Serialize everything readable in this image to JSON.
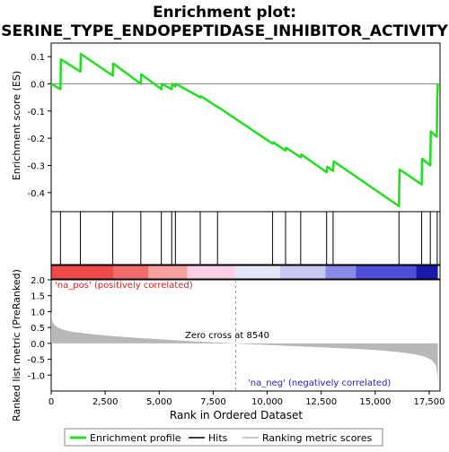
{
  "colors": {
    "es_line": "#22dd22",
    "hit_line": "#000000",
    "metric_fill": "#b8b8b8",
    "zero_line": "#888888",
    "pos_label": "#cc2222",
    "neg_label": "#2222cc",
    "heat_pos": "#ee2222",
    "heat_neg": "#2222cc"
  },
  "chart_data": [
    {
      "type": "line",
      "title": [
        "Enrichment plot:",
        "SERINE_TYPE_ENDOPEPTIDASE_INHIBITOR_ACTIVITY"
      ],
      "ylabel": "Enrichment score (ES)",
      "xlim": [
        0,
        18000
      ],
      "ylim": [
        -0.47,
        0.15
      ],
      "yticks": [
        0.1,
        0.0,
        -0.1,
        -0.2,
        -0.3,
        -0.4
      ],
      "ytick_labels": [
        "0.1",
        "0.0",
        "-0.1",
        "-0.2",
        "-0.3",
        "-0.4"
      ],
      "grid": false,
      "series": [
        {
          "name": "Enrichment profile",
          "x": [
            0,
            430,
            450,
            1350,
            1370,
            2850,
            2870,
            4150,
            4170,
            5100,
            5120,
            5580,
            5600,
            5750,
            5780,
            6900,
            6920,
            7700,
            7720,
            10250,
            10280,
            10850,
            10870,
            11550,
            11580,
            12750,
            12780,
            13050,
            13080,
            16100,
            16110,
            16130,
            17150,
            17170,
            17550,
            17570,
            17850,
            17870,
            17900
          ],
          "y": [
            0.0,
            -0.02,
            0.09,
            0.045,
            0.11,
            0.03,
            0.075,
            0.0,
            0.035,
            -0.02,
            0.0,
            -0.02,
            0.0,
            -0.01,
            0.0,
            -0.05,
            -0.045,
            -0.085,
            -0.085,
            -0.22,
            -0.215,
            -0.245,
            -0.235,
            -0.27,
            -0.26,
            -0.325,
            -0.305,
            -0.32,
            -0.285,
            -0.45,
            -0.385,
            -0.315,
            -0.37,
            -0.275,
            -0.3,
            -0.175,
            -0.195,
            -0.05,
            0.0
          ]
        }
      ]
    },
    {
      "type": "line",
      "title": "Hits",
      "xlim": [
        0,
        18000
      ],
      "hits": [
        430,
        1350,
        2850,
        4150,
        5100,
        5580,
        5750,
        6900,
        7700,
        10250,
        10850,
        11550,
        12750,
        13050,
        16100,
        17150,
        17550,
        17870
      ]
    },
    {
      "type": "area",
      "title": "Ranking metric scores",
      "xlabel": "Rank in Ordered Dataset",
      "ylabel": "Ranked list metric (PreRanked)",
      "xlim": [
        0,
        18000
      ],
      "ylim": [
        -1.5,
        2.0
      ],
      "xticks": [
        0,
        2500,
        5000,
        7500,
        10000,
        12500,
        15000,
        17500
      ],
      "xtick_labels": [
        "0",
        "2,500",
        "5,000",
        "7,500",
        "10,000",
        "12,500",
        "15,000",
        "17,500"
      ],
      "yticks": [
        2.0,
        1.5,
        1.0,
        0.5,
        0.0,
        -0.5,
        -1.0
      ],
      "ytick_labels": [
        "2.0",
        "1.5",
        "1.0",
        "0.5",
        "0.0",
        "-0.5",
        "-1.0"
      ],
      "x": [
        0,
        50,
        150,
        300,
        600,
        1000,
        2000,
        3000,
        4000,
        5000,
        6000,
        7000,
        8000,
        8540,
        9000,
        10000,
        11000,
        12000,
        13000,
        14000,
        15000,
        16000,
        16800,
        17300,
        17600,
        17800,
        17880,
        17900
      ],
      "values": [
        1.0,
        0.7,
        0.58,
        0.5,
        0.42,
        0.36,
        0.28,
        0.22,
        0.17,
        0.13,
        0.09,
        0.05,
        0.02,
        0.0,
        -0.02,
        -0.05,
        -0.08,
        -0.11,
        -0.14,
        -0.17,
        -0.21,
        -0.27,
        -0.34,
        -0.42,
        -0.52,
        -0.68,
        -0.95,
        -1.3
      ],
      "zero_cross_label": "Zero cross at 8540",
      "pos_label": "'na_pos' (positively correlated)",
      "neg_label": "'na_neg' (negatively correlated)",
      "heatmap_bands": [
        {
          "start": 0,
          "end": 2900,
          "color": "#ee4a4a"
        },
        {
          "start": 2900,
          "end": 4500,
          "color": "#f26b6b"
        },
        {
          "start": 4500,
          "end": 6300,
          "color": "#f7a0a0"
        },
        {
          "start": 6300,
          "end": 8500,
          "color": "#fbd0e6"
        },
        {
          "start": 8500,
          "end": 10600,
          "color": "#e6e6fa"
        },
        {
          "start": 10600,
          "end": 12700,
          "color": "#c8c8f2"
        },
        {
          "start": 12700,
          "end": 14100,
          "color": "#8a8ae8"
        },
        {
          "start": 14100,
          "end": 16900,
          "color": "#4e4ed8"
        },
        {
          "start": 16900,
          "end": 17900,
          "color": "#1a1aaa"
        }
      ]
    }
  ],
  "legend": {
    "items": [
      {
        "label": "Enrichment profile",
        "color": "#22dd22",
        "width": 3
      },
      {
        "label": "Hits",
        "color": "#000000",
        "width": 1
      },
      {
        "label": "Ranking metric scores",
        "color": "#b8b8b8",
        "width": 1
      }
    ]
  }
}
